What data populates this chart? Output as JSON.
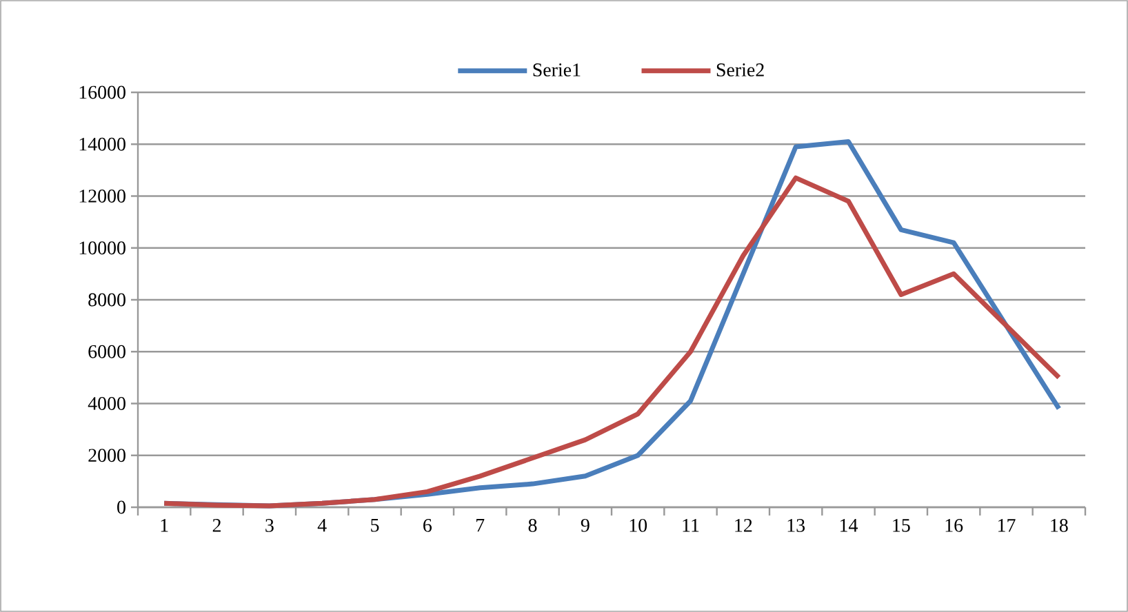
{
  "chart_data": {
    "type": "line",
    "categories": [
      "1",
      "2",
      "3",
      "4",
      "5",
      "6",
      "7",
      "8",
      "9",
      "10",
      "11",
      "12",
      "13",
      "14",
      "15",
      "16",
      "17",
      "18"
    ],
    "series": [
      {
        "name": "Serie1",
        "color": "#4a7ebb",
        "values": [
          150,
          100,
          50,
          150,
          300,
          500,
          750,
          900,
          1200,
          2000,
          4100,
          9000,
          13900,
          14100,
          10700,
          10200,
          7000,
          3800
        ]
      },
      {
        "name": "Serie2",
        "color": "#be4b48",
        "values": [
          150,
          80,
          50,
          150,
          300,
          600,
          1200,
          1900,
          2600,
          3600,
          6000,
          9700,
          12700,
          11800,
          8200,
          9000,
          7000,
          5000
        ]
      }
    ],
    "ylim": [
      0,
      16000
    ],
    "yticks": [
      0,
      2000,
      4000,
      6000,
      8000,
      10000,
      12000,
      14000,
      16000
    ],
    "grid": "y",
    "legend": "top",
    "marker": "none",
    "line_style": "solid"
  }
}
